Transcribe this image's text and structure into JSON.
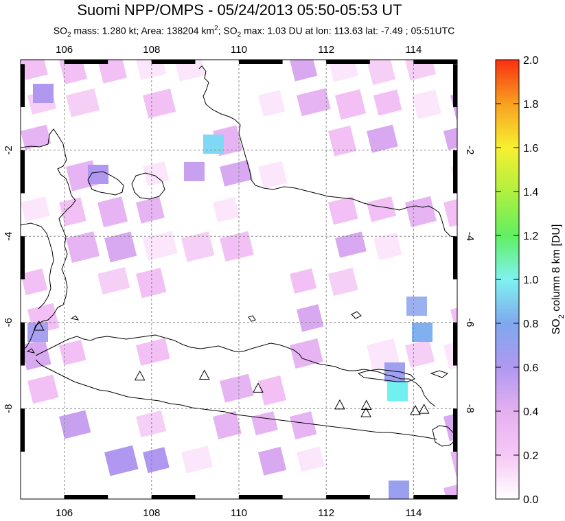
{
  "header": {
    "title": "Suomi NPP/OMPS - 05/24/2013 05:50-05:53 UT",
    "subtitle_prefix": "SO",
    "subtitle_sub1": "2",
    "subtitle_mass": " mass: 1.280 kt; Area: 138204 km",
    "subtitle_sup": "2",
    "subtitle_mid": "; SO",
    "subtitle_sub2": "2",
    "subtitle_rest": " max: 1.03 DU at lon: 113.63 lat: -7.49 ; 05:51UTC"
  },
  "map": {
    "lon_range": [
      105,
      115
    ],
    "lat_range": [
      -10.1,
      0.1
    ],
    "lon_ticks": [
      "106",
      "108",
      "110",
      "112",
      "114"
    ],
    "lat_ticks": [
      "-2",
      "-4",
      "-6",
      "-8"
    ],
    "grid": true
  },
  "colorbar": {
    "label_main": "SO",
    "label_sub": "2",
    "label_rest": " column 8 km [DU]",
    "ticks": [
      "2.0",
      "1.8",
      "1.6",
      "1.4",
      "1.2",
      "1.0",
      "0.8",
      "0.6",
      "0.4",
      "0.2",
      "0.0"
    ],
    "range": [
      0.0,
      2.0
    ],
    "colors": [
      "#ffffff",
      "#f6c8f6",
      "#e4b0f0",
      "#b098f0",
      "#7fa8ee",
      "#7ff2f2",
      "#60f060",
      "#b0f040",
      "#f8f030",
      "#f8a020",
      "#f83010"
    ]
  },
  "volcanoes": [
    {
      "lon": 105.42,
      "lat": -6.1
    },
    {
      "lon": 107.73,
      "lat": -7.26
    },
    {
      "lon": 109.21,
      "lat": -7.24
    },
    {
      "lon": 110.44,
      "lat": -7.54
    },
    {
      "lon": 112.31,
      "lat": -7.93
    },
    {
      "lon": 112.92,
      "lat": -7.94
    },
    {
      "lon": 112.91,
      "lat": -8.11
    },
    {
      "lon": 114.04,
      "lat": -8.06
    },
    {
      "lon": 114.24,
      "lat": -8.03
    }
  ]
}
